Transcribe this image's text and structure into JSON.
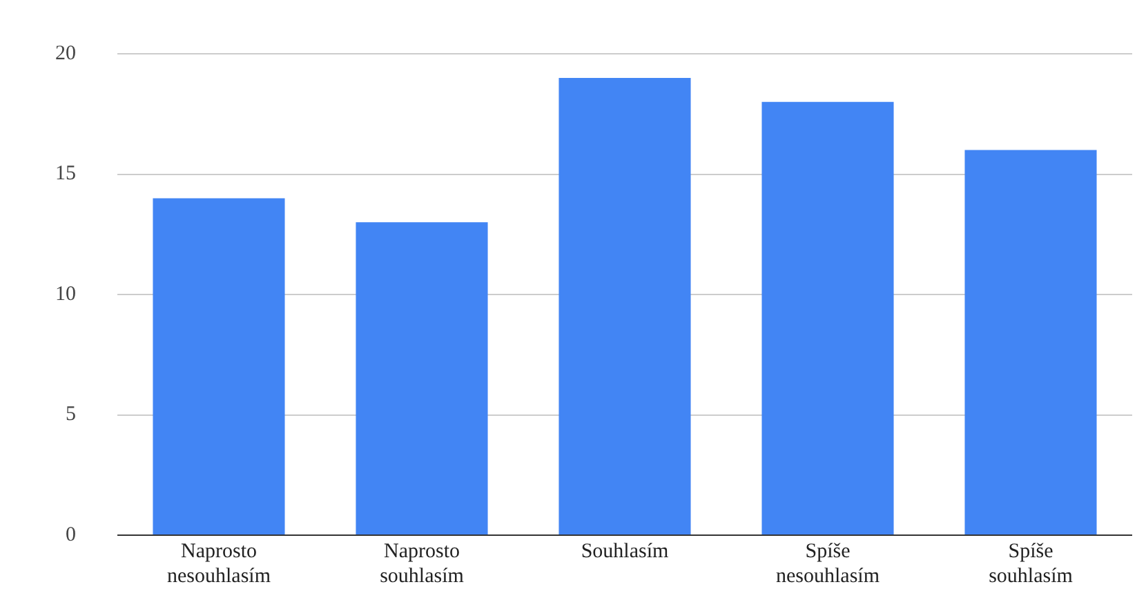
{
  "chart_data": {
    "type": "bar",
    "categories": [
      "Naprosto nesouhlasím",
      "Naprosto souhlasím",
      "Souhlasím",
      "Spíše nesouhlasím",
      "Spíše souhlasím"
    ],
    "values": [
      14,
      13,
      19,
      18,
      16
    ],
    "color": "#4285f4",
    "ylim": [
      0,
      20
    ],
    "yticks": [
      0,
      5,
      10,
      15,
      20
    ],
    "grid": "y",
    "legend": false
  }
}
